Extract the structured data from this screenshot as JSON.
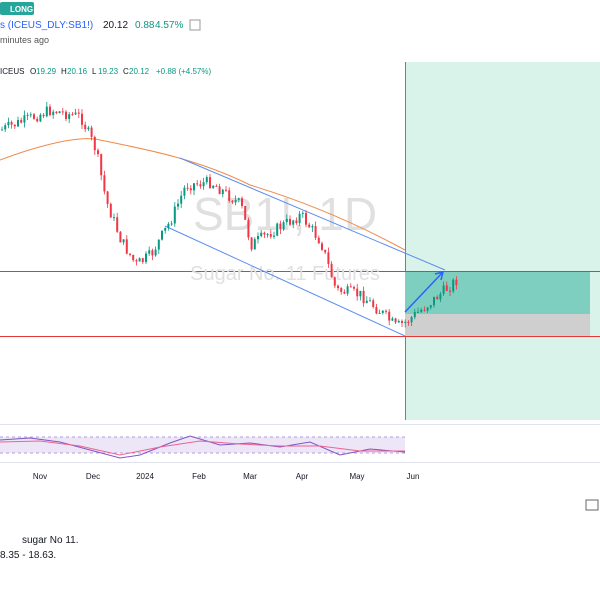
{
  "header": {
    "badge": "LONG",
    "symbol": "s (ICEUS_DLY:SB1!)",
    "price": "20.12",
    "change": "0.88",
    "change_pct": "4.57%",
    "time": "minutes ago"
  },
  "chart": {
    "exchange": "ICEUS",
    "ohlc": [
      {
        "label": "O",
        "value": "19.29"
      },
      {
        "label": "H",
        "value": "20.16"
      },
      {
        "label": "L",
        "value": "19.23"
      },
      {
        "label": "C",
        "value": "20.12"
      }
    ],
    "change": "+0.88 (+4.57%)",
    "watermark": "SB1!, 1D",
    "watermark_sub": "Sugar No. 11 Futures",
    "dates": [
      "Nov",
      "Dec",
      "2024",
      "Feb",
      "Mar",
      "Apr",
      "May",
      "Jun"
    ]
  },
  "text": [
    "sugar No 11.",
    "8.35 - 18.63."
  ]
}
